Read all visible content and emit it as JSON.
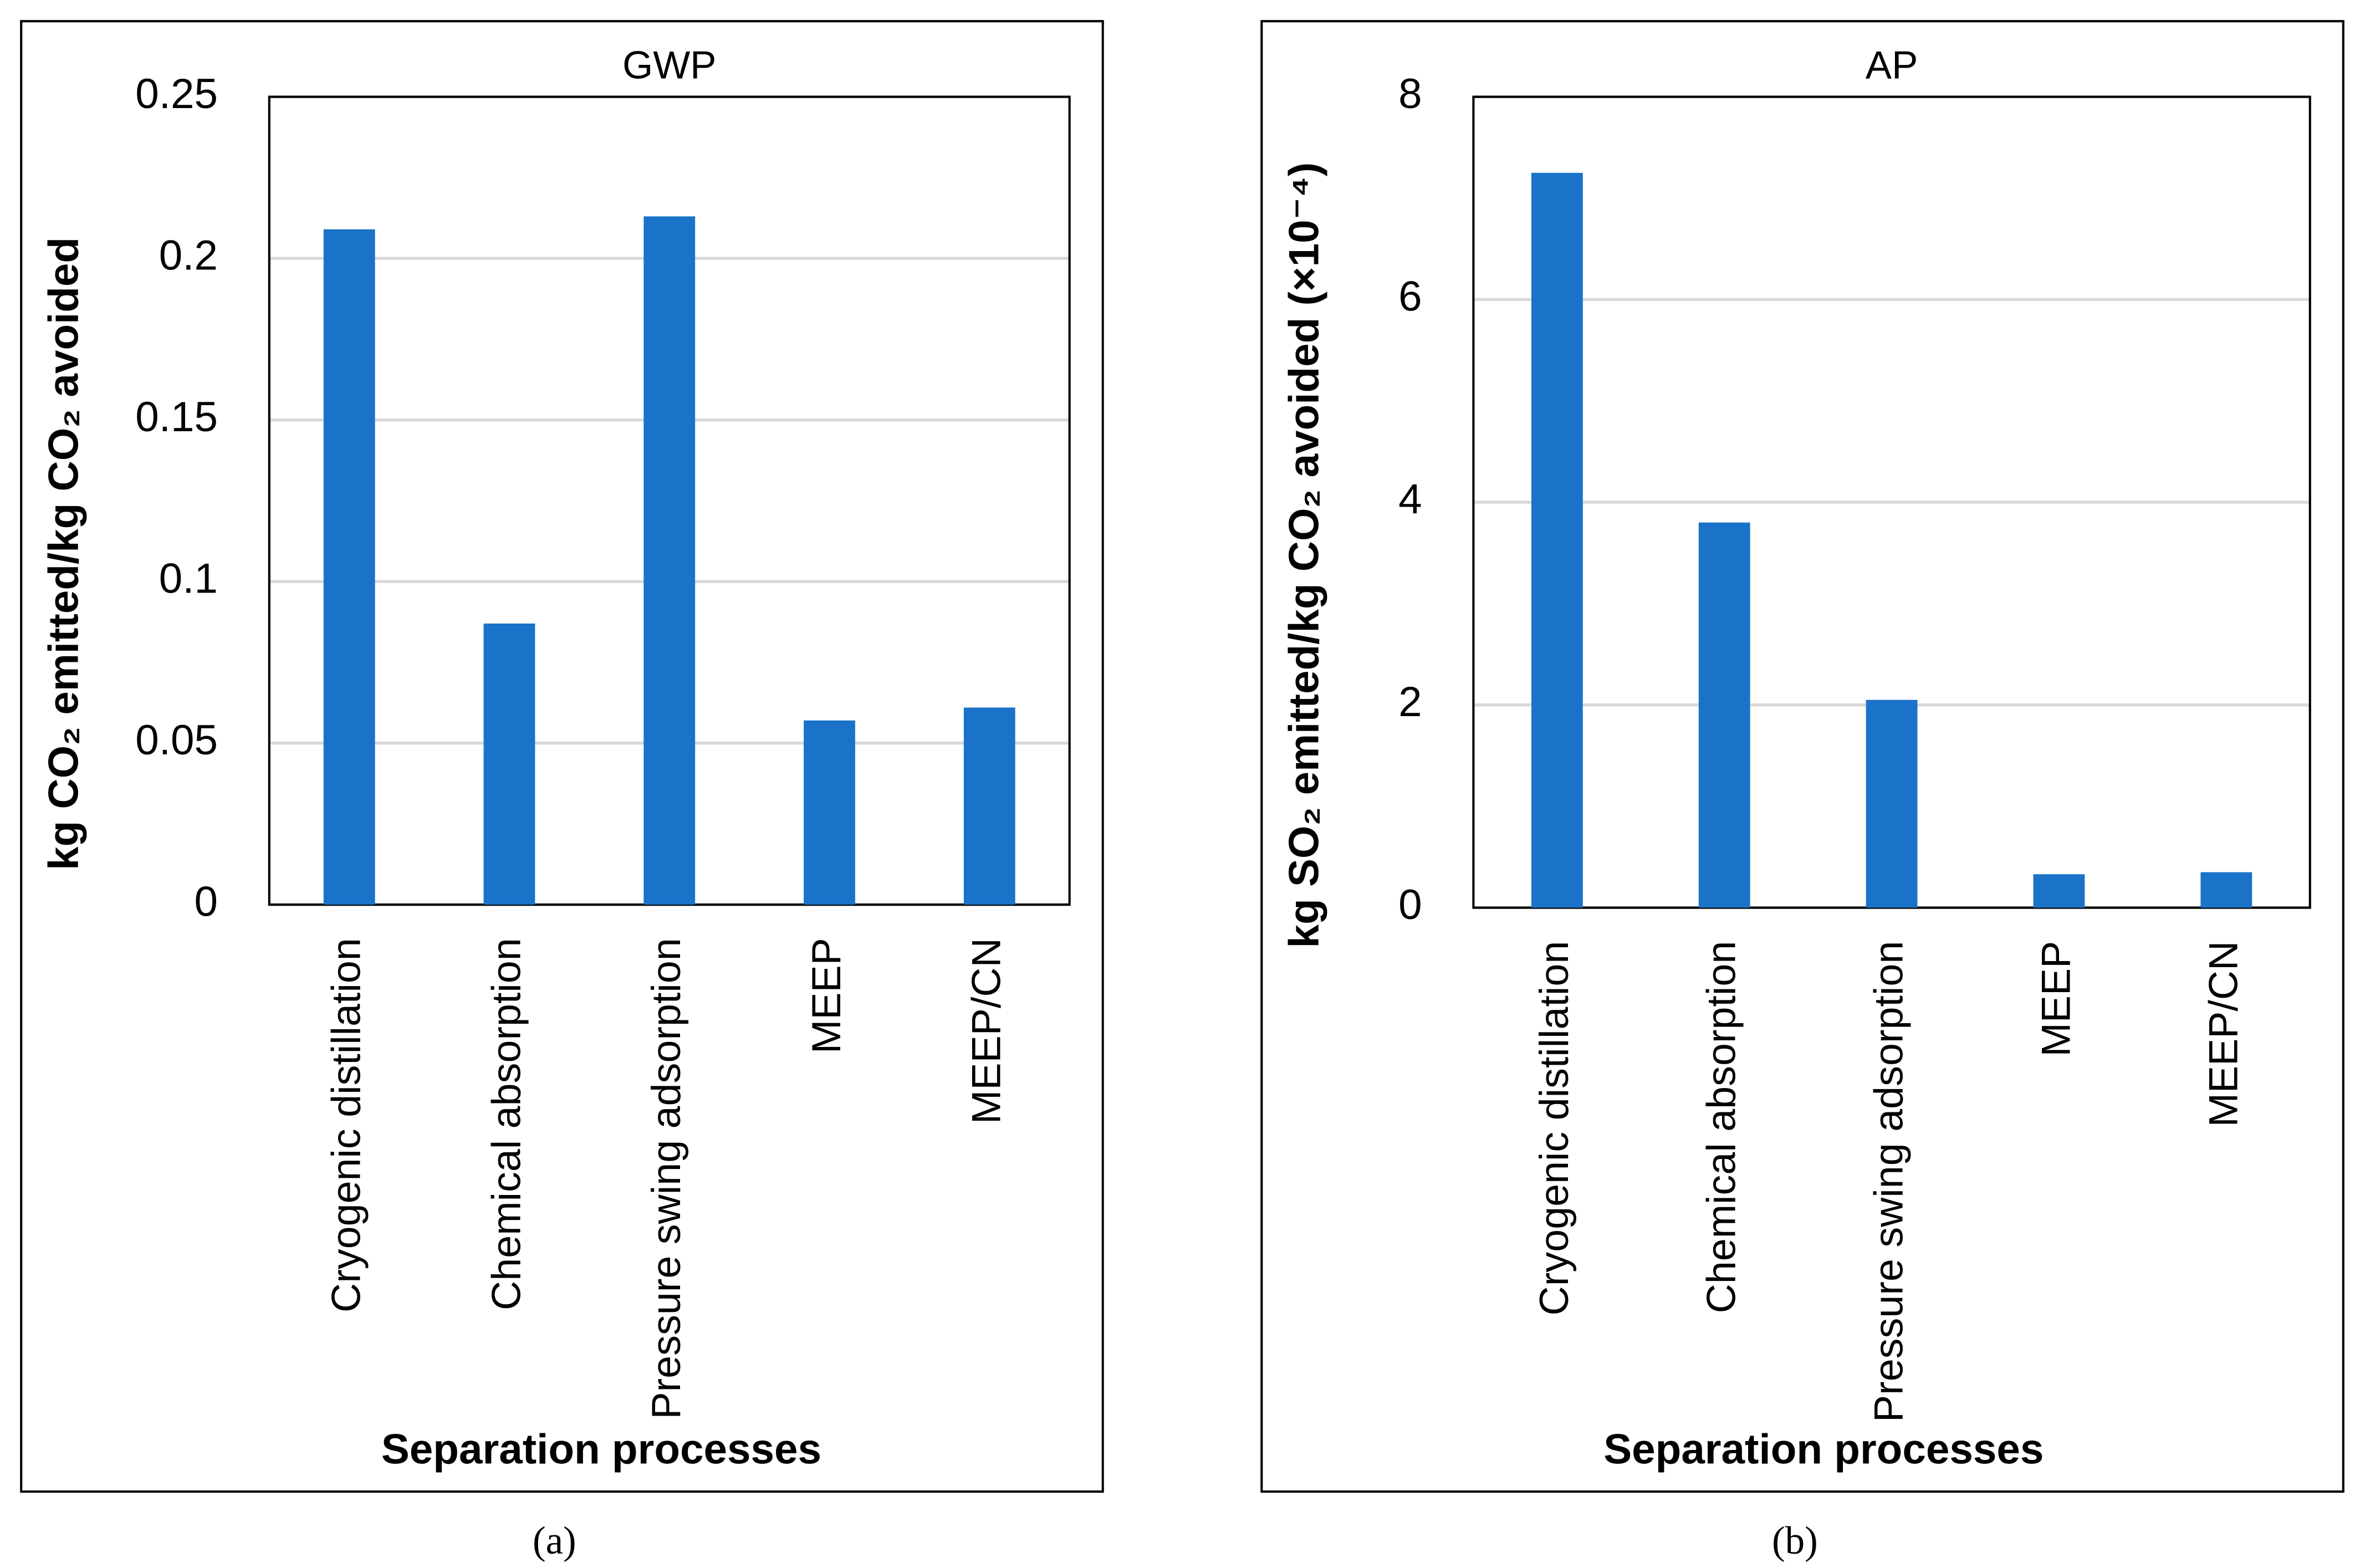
{
  "chart_data": [
    {
      "type": "bar",
      "title": "GWP",
      "x_label": "Separation processes",
      "y_label": "kg CO₂ emitted/kg CO₂ avoided",
      "caption": "(a)",
      "categories": [
        "Cryogenic distillation",
        "Chemical absorption",
        "Pressure swing adsorption",
        "MEEP",
        "MEEP/CN"
      ],
      "values": [
        0.209,
        0.087,
        0.213,
        0.057,
        0.061
      ],
      "color": "#1a73c8",
      "ylim": [
        0,
        0.25
      ],
      "yticks": [
        0,
        0.05,
        0.1,
        0.15,
        0.2,
        0.25
      ],
      "grid": true
    },
    {
      "type": "bar",
      "title": "AP",
      "x_label": "Separation processes",
      "y_label": "kg SO₂ emitted/kg CO₂ avoided (×10⁻⁴)",
      "caption": "(b)",
      "categories": [
        "Cryogenic distillation",
        "Chemical absorption",
        "Pressure swing adsorption",
        "MEEP",
        "MEEP/CN"
      ],
      "values": [
        7.25,
        3.8,
        2.05,
        0.33,
        0.35
      ],
      "color": "#1a73c8",
      "ylim": [
        0,
        8
      ],
      "yticks": [
        0,
        2,
        4,
        6,
        8
      ],
      "grid": true
    }
  ]
}
